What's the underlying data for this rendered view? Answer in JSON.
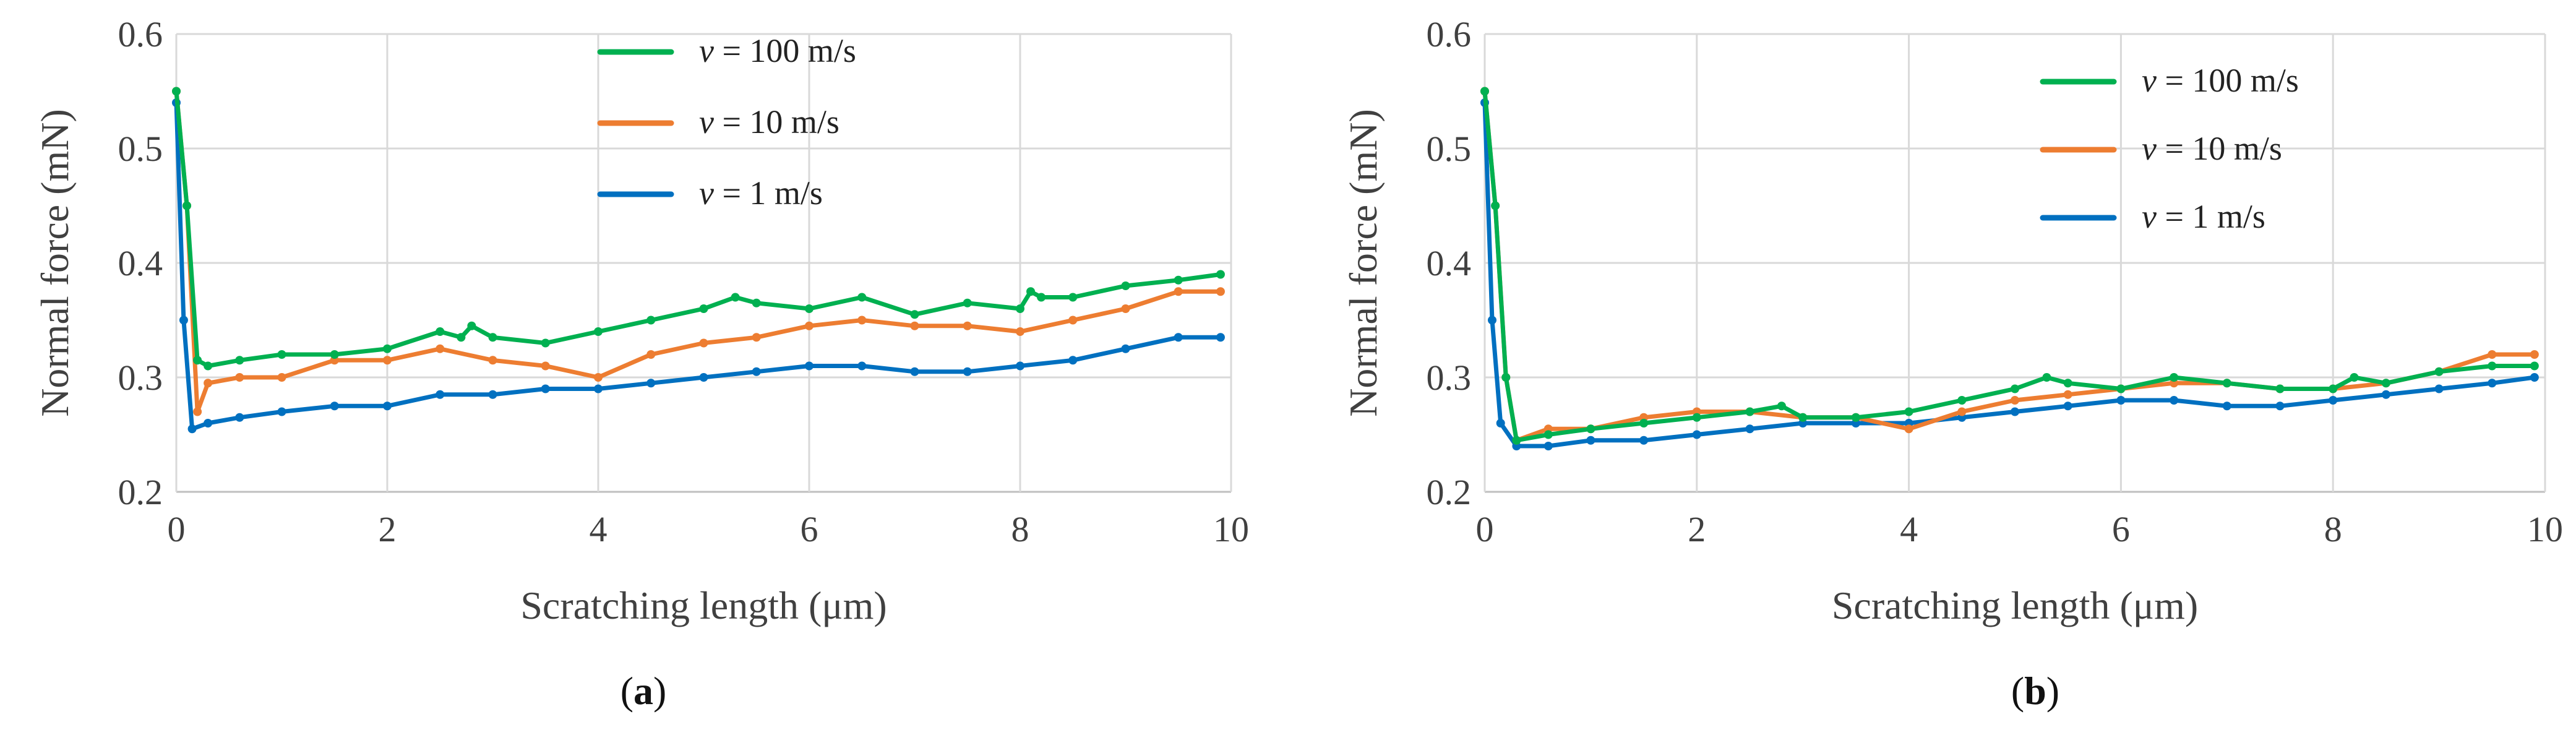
{
  "chart_data": [
    {
      "type": "line",
      "panel_label": "a",
      "xlabel": "Scratching length (μm)",
      "ylabel": "Normal force (mN)",
      "xlim": [
        0,
        10
      ],
      "ylim": [
        0.2,
        0.6
      ],
      "xticks": [
        "0",
        "2",
        "4",
        "6",
        "8",
        "10"
      ],
      "yticks": [
        "0.2",
        "0.3",
        "0.4",
        "0.5",
        "0.6"
      ],
      "grid": true,
      "legend_position": "top-center",
      "series": [
        {
          "name": "v = 100 m/s",
          "color": "#00b050",
          "x": [
            0,
            0.1,
            0.2,
            0.3,
            0.6,
            1,
            1.5,
            2,
            2.5,
            2.7,
            2.8,
            3,
            3.5,
            4,
            4.5,
            5,
            5.3,
            5.5,
            6,
            6.5,
            7,
            7.5,
            8,
            8.1,
            8.2,
            8.5,
            9,
            9.5,
            9.9
          ],
          "y": [
            0.55,
            0.45,
            0.315,
            0.31,
            0.315,
            0.32,
            0.32,
            0.325,
            0.34,
            0.335,
            0.345,
            0.335,
            0.33,
            0.34,
            0.35,
            0.36,
            0.37,
            0.365,
            0.36,
            0.37,
            0.355,
            0.365,
            0.36,
            0.375,
            0.37,
            0.37,
            0.38,
            0.385,
            0.39
          ]
        },
        {
          "name": "v = 10 m/s",
          "color": "#ed7d31",
          "x": [
            0,
            0.1,
            0.2,
            0.3,
            0.6,
            1,
            1.5,
            2,
            2.5,
            3,
            3.5,
            4,
            4.5,
            5,
            5.5,
            6,
            6.5,
            7,
            7.5,
            8,
            8.5,
            9,
            9.5,
            9.9
          ],
          "y": [
            0.55,
            0.45,
            0.27,
            0.295,
            0.3,
            0.3,
            0.315,
            0.315,
            0.325,
            0.315,
            0.31,
            0.3,
            0.32,
            0.33,
            0.335,
            0.345,
            0.35,
            0.345,
            0.345,
            0.34,
            0.35,
            0.36,
            0.375,
            0.375
          ]
        },
        {
          "name": "v = 1 m/s",
          "color": "#0070c0",
          "x": [
            0,
            0.07,
            0.15,
            0.3,
            0.6,
            1,
            1.5,
            2,
            2.5,
            3,
            3.5,
            4,
            4.5,
            5,
            5.5,
            6,
            6.5,
            7,
            7.5,
            8,
            8.5,
            9,
            9.5,
            9.9
          ],
          "y": [
            0.54,
            0.35,
            0.255,
            0.26,
            0.265,
            0.27,
            0.275,
            0.275,
            0.285,
            0.285,
            0.29,
            0.29,
            0.295,
            0.3,
            0.305,
            0.31,
            0.31,
            0.305,
            0.305,
            0.31,
            0.315,
            0.325,
            0.335,
            0.335
          ]
        }
      ]
    },
    {
      "type": "line",
      "panel_label": "b",
      "xlabel": "Scratching length (μm)",
      "ylabel": "Normal force (mN)",
      "xlim": [
        0,
        10
      ],
      "ylim": [
        0.2,
        0.6
      ],
      "xticks": [
        "0",
        "2",
        "4",
        "6",
        "8",
        "10"
      ],
      "yticks": [
        "0.2",
        "0.3",
        "0.4",
        "0.5",
        "0.6"
      ],
      "grid": true,
      "legend_position": "top-right",
      "series": [
        {
          "name": "v = 100 m/s",
          "color": "#00b050",
          "x": [
            0,
            0.1,
            0.2,
            0.3,
            0.6,
            1,
            1.5,
            2,
            2.5,
            2.8,
            3,
            3.5,
            4,
            4.5,
            5,
            5.3,
            5.5,
            6,
            6.5,
            7,
            7.5,
            8,
            8.2,
            8.5,
            9,
            9.5,
            9.9
          ],
          "y": [
            0.55,
            0.45,
            0.3,
            0.245,
            0.25,
            0.255,
            0.26,
            0.265,
            0.27,
            0.275,
            0.265,
            0.265,
            0.27,
            0.28,
            0.29,
            0.3,
            0.295,
            0.29,
            0.3,
            0.295,
            0.29,
            0.29,
            0.3,
            0.295,
            0.305,
            0.31,
            0.31
          ]
        },
        {
          "name": "v = 10 m/s",
          "color": "#ed7d31",
          "x": [
            0,
            0.1,
            0.2,
            0.3,
            0.6,
            1,
            1.5,
            2,
            2.5,
            3,
            3.5,
            4,
            4.5,
            5,
            5.5,
            6,
            6.5,
            7,
            7.5,
            8,
            8.5,
            9,
            9.5,
            9.9
          ],
          "y": [
            0.55,
            0.45,
            0.3,
            0.245,
            0.255,
            0.255,
            0.265,
            0.27,
            0.27,
            0.265,
            0.265,
            0.255,
            0.27,
            0.28,
            0.285,
            0.29,
            0.295,
            0.295,
            0.29,
            0.29,
            0.295,
            0.305,
            0.32,
            0.32
          ]
        },
        {
          "name": "v = 1 m/s",
          "color": "#0070c0",
          "x": [
            0,
            0.07,
            0.15,
            0.3,
            0.6,
            1,
            1.5,
            2,
            2.5,
            3,
            3.5,
            4,
            4.5,
            5,
            5.5,
            6,
            6.5,
            7,
            7.5,
            8,
            8.5,
            9,
            9.5,
            9.9
          ],
          "y": [
            0.54,
            0.35,
            0.26,
            0.24,
            0.24,
            0.245,
            0.245,
            0.25,
            0.255,
            0.26,
            0.26,
            0.26,
            0.265,
            0.27,
            0.275,
            0.28,
            0.28,
            0.275,
            0.275,
            0.28,
            0.285,
            0.29,
            0.295,
            0.3
          ]
        }
      ]
    }
  ]
}
